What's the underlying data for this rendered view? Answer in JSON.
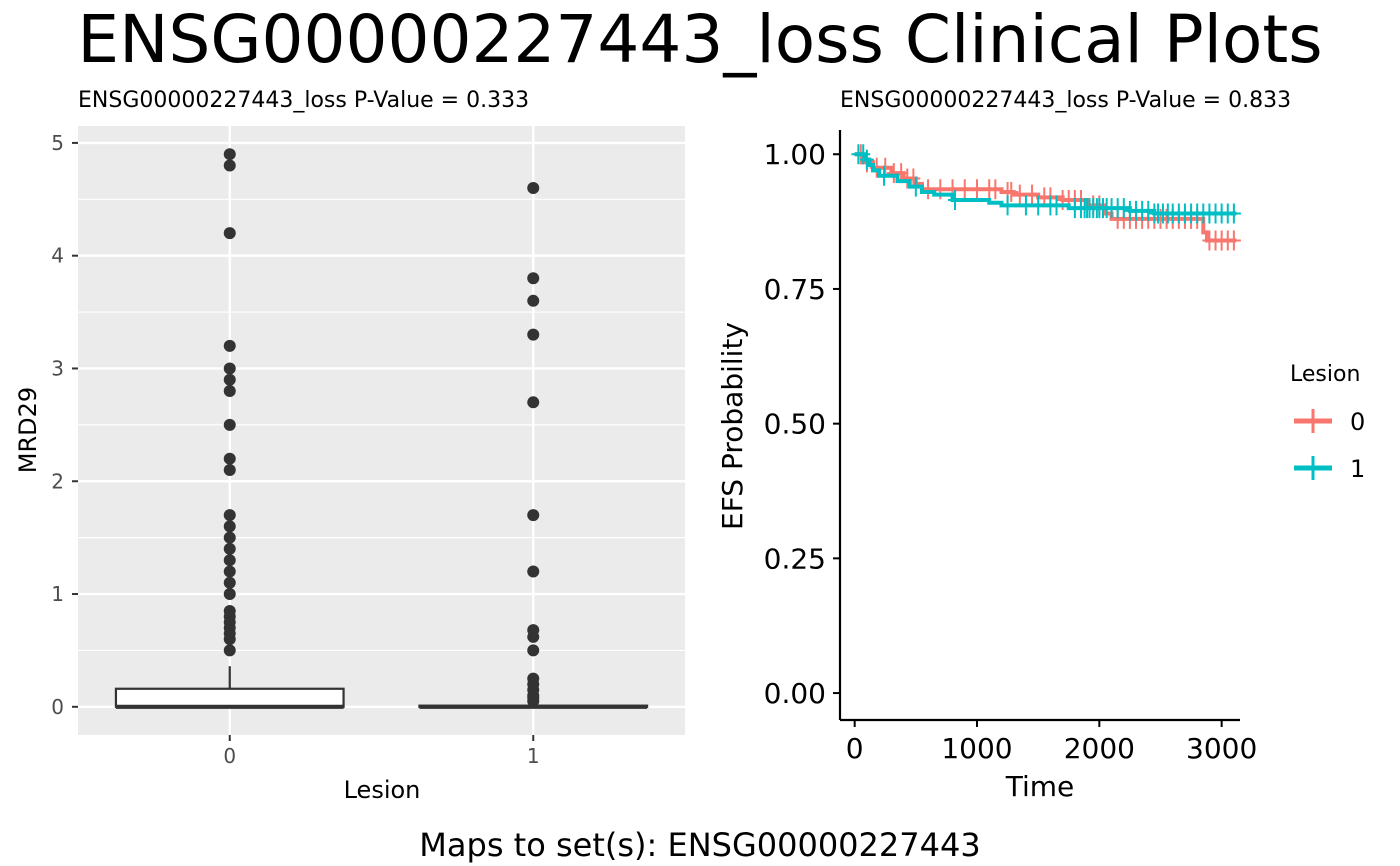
{
  "figure": {
    "title": "ENSG00000227443_loss Clinical Plots",
    "footer": "Maps to set(s): ENSG00000227443"
  },
  "chart_data": [
    {
      "type": "box",
      "title": "ENSG00000227443_loss  P-Value =  0.333",
      "xlabel": "Lesion",
      "ylabel": "MRD29",
      "categories": [
        "0",
        "1"
      ],
      "ylim": [
        -0.25,
        5.15
      ],
      "yticks": [
        0,
        1,
        2,
        3,
        4,
        5
      ],
      "ytick_labels": [
        "0",
        "1",
        "2",
        "3",
        "4",
        "5"
      ],
      "boxes": [
        {
          "category": "0",
          "q1": 0,
          "median": 0,
          "q3": 0.16,
          "whisker_low": 0,
          "whisker_high": 0.36,
          "outliers": [
            0.5,
            0.6,
            0.65,
            0.7,
            0.75,
            0.8,
            0.85,
            1.0,
            1.1,
            1.2,
            1.3,
            1.4,
            1.5,
            1.6,
            1.7,
            2.1,
            2.2,
            2.5,
            2.8,
            2.9,
            3.0,
            3.2,
            4.2,
            4.8,
            4.9
          ]
        },
        {
          "category": "1",
          "q1": 0,
          "median": 0,
          "q3": 0.01,
          "whisker_low": 0,
          "whisker_high": 0.02,
          "outliers": [
            0.05,
            0.08,
            0.1,
            0.15,
            0.2,
            0.25,
            0.5,
            0.62,
            0.68,
            1.2,
            1.7,
            2.7,
            3.3,
            3.6,
            3.8,
            4.6
          ]
        }
      ]
    },
    {
      "type": "line",
      "subtype": "kaplan-meier",
      "title": "ENSG00000227443_loss  P-Value =  0.833",
      "xlabel": "Time",
      "ylabel": "EFS Probability",
      "xlim": [
        -120,
        3150
      ],
      "ylim": [
        -0.05,
        1.045
      ],
      "xticks": [
        0,
        1000,
        2000,
        3000
      ],
      "xtick_labels": [
        "0",
        "1000",
        "2000",
        "3000"
      ],
      "yticks": [
        0,
        0.25,
        0.5,
        0.75,
        1.0
      ],
      "ytick_labels": [
        "0.00",
        "0.25",
        "0.50",
        "0.75",
        "1.00"
      ],
      "legend": {
        "title": "Lesion",
        "position": "right",
        "entries": [
          "0",
          "1"
        ]
      },
      "series": [
        {
          "name": "0",
          "color": "#F8766D",
          "steps": [
            [
              0,
              1.0
            ],
            [
              60,
              0.985
            ],
            [
              150,
              0.975
            ],
            [
              300,
              0.965
            ],
            [
              400,
              0.955
            ],
            [
              500,
              0.945
            ],
            [
              550,
              0.935
            ],
            [
              1200,
              0.93
            ],
            [
              1300,
              0.925
            ],
            [
              1500,
              0.92
            ],
            [
              1700,
              0.915
            ],
            [
              1900,
              0.905
            ],
            [
              2050,
              0.89
            ],
            [
              2100,
              0.88
            ],
            [
              2850,
              0.855
            ],
            [
              2880,
              0.84
            ],
            [
              3120,
              0.84
            ]
          ],
          "censors": [
            50,
            100,
            180,
            250,
            320,
            380,
            430,
            480,
            600,
            700,
            800,
            900,
            1000,
            1100,
            1150,
            1250,
            1280,
            1350,
            1450,
            1550,
            1600,
            1700,
            1750,
            1800,
            1850,
            1950,
            2000,
            2150,
            2200,
            2250,
            2300,
            2350,
            2400,
            2450,
            2500,
            2550,
            2600,
            2650,
            2700,
            2750,
            2800,
            2900,
            2950,
            3000,
            3050,
            3100
          ]
        },
        {
          "name": "1",
          "color": "#00BFC4",
          "steps": [
            [
              0,
              1.0
            ],
            [
              80,
              0.99
            ],
            [
              120,
              0.98
            ],
            [
              150,
              0.97
            ],
            [
              200,
              0.96
            ],
            [
              350,
              0.95
            ],
            [
              450,
              0.94
            ],
            [
              550,
              0.93
            ],
            [
              650,
              0.925
            ],
            [
              800,
              0.915
            ],
            [
              1100,
              0.91
            ],
            [
              1200,
              0.905
            ],
            [
              1750,
              0.9
            ],
            [
              2250,
              0.895
            ],
            [
              2450,
              0.89
            ],
            [
              3120,
              0.89
            ]
          ],
          "censors": [
            30,
            70,
            100,
            240,
            500,
            820,
            1250,
            1400,
            1500,
            1600,
            1650,
            1800,
            1850,
            1880,
            1900,
            1920,
            1950,
            1980,
            2000,
            2030,
            2060,
            2100,
            2150,
            2200,
            2250,
            2300,
            2350,
            2400,
            2450,
            2480,
            2520,
            2560,
            2600,
            2650,
            2700,
            2750,
            2800,
            2850,
            2900,
            2950,
            3000,
            3050,
            3100
          ]
        }
      ]
    }
  ]
}
